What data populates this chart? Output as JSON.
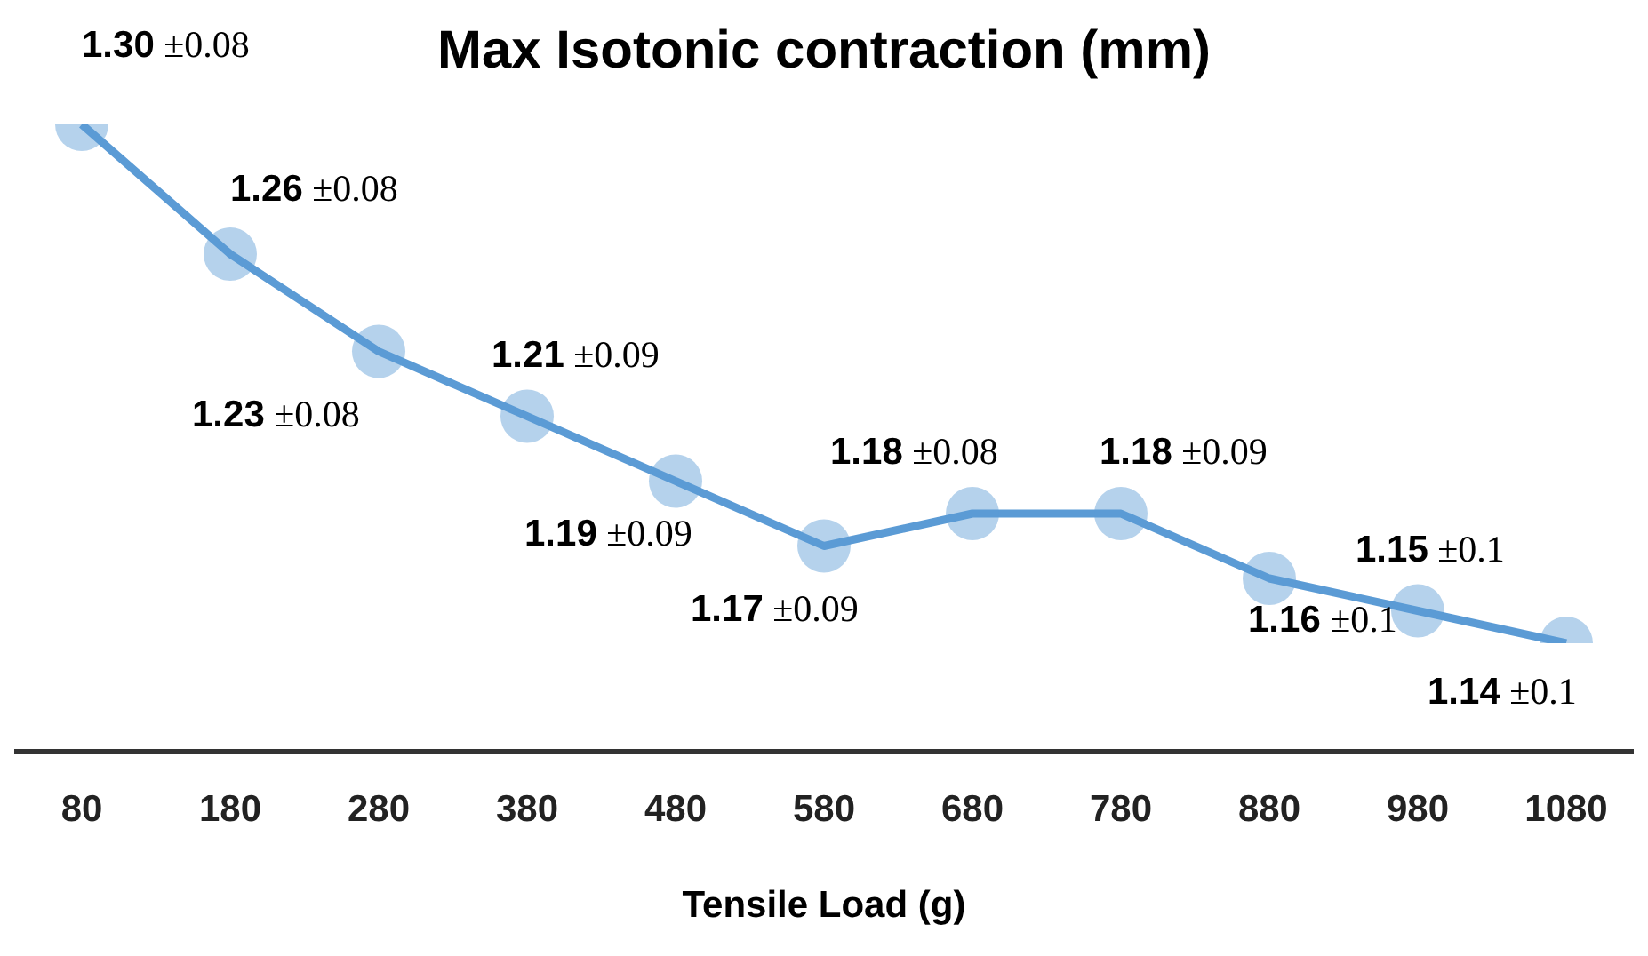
{
  "chart_data": {
    "type": "line",
    "title": "Max Isotonic contraction (mm)",
    "xlabel": "Tensile Load (g)",
    "categories": [
      "80",
      "180",
      "280",
      "380",
      "480",
      "580",
      "680",
      "780",
      "880",
      "980",
      "1080"
    ],
    "series": [
      {
        "color": "#5b9bd5",
        "values": [
          1.3,
          1.26,
          1.23,
          1.21,
          1.19,
          1.17,
          1.18,
          1.18,
          1.16,
          1.15,
          1.14
        ],
        "value_labels": [
          "1.30 ±0.08",
          "1.26 ±0.08",
          "1.23 ±0.08",
          "1.21 ±0.09",
          "1.19 ±0.09",
          "1.17 ±0.09",
          "1.18 ±0.08",
          "1.18 ±0.09",
          "1.16 ±0.1",
          "1.15 ±0.1",
          "1.14 ±0.1"
        ]
      }
    ],
    "marker": "circle"
  }
}
